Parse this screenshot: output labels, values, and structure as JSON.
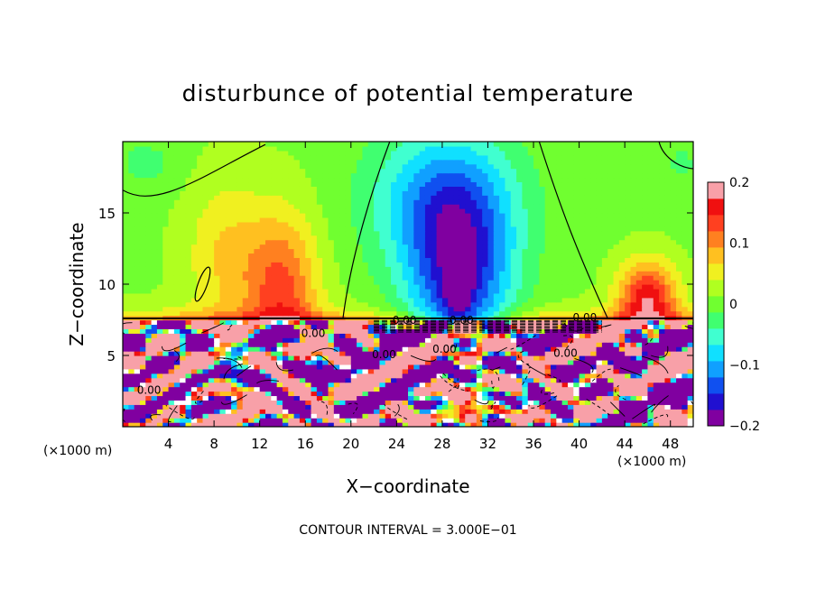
{
  "chart_data": {
    "type": "heatmap",
    "title": "disturbunce of potential temperature",
    "xlabel": "X−coordinate",
    "ylabel": "Z−coordinate",
    "x_unit_left": "(×1000 m)",
    "x_unit_right": "(×1000 m)",
    "footer": "CONTOUR INTERVAL = 3.000E−01",
    "x_range": [
      0,
      50
    ],
    "y_range": [
      0,
      20
    ],
    "x_ticks": [
      4,
      8,
      12,
      16,
      20,
      24,
      28,
      32,
      36,
      40,
      44,
      48
    ],
    "y_ticks": [
      5,
      10,
      15
    ],
    "colorbar": {
      "range": [
        -0.2,
        0.2
      ],
      "tick_values": [
        0.2,
        0.1,
        0,
        -0.1,
        -0.2
      ],
      "tick_labels": [
        "0.2",
        "0.1",
        "0",
        "−0.1",
        "−0.2"
      ],
      "colors": [
        "#8000a0",
        "#2010d0",
        "#1050f0",
        "#10a0ff",
        "#10e0ff",
        "#40ffd0",
        "#40ff70",
        "#70ff30",
        "#b0ff20",
        "#f0f020",
        "#ffc020",
        "#ff8020",
        "#ff4020",
        "#f01010",
        "#f8a0a8"
      ]
    },
    "contour_labels": [
      {
        "text": "0.00",
        "x": 24.7,
        "y": 7.2
      },
      {
        "text": "0.00",
        "x": 29.7,
        "y": 7.2
      },
      {
        "text": "0.00",
        "x": 40.5,
        "y": 7.4
      },
      {
        "text": "0.00",
        "x": 16.7,
        "y": 6.3
      },
      {
        "text": "0.00",
        "x": 38.8,
        "y": 4.9
      },
      {
        "text": "0.00",
        "x": 28.2,
        "y": 5.2
      },
      {
        "text": "0.00",
        "x": 22.9,
        "y": 4.8
      },
      {
        "text": "0.00",
        "x": 2.3,
        "y": 2.3
      }
    ],
    "features": [
      {
        "kind": "warm",
        "center": [
          14,
          11
        ],
        "amplitude": 0.13
      },
      {
        "kind": "warm",
        "center": [
          46,
          9.5
        ],
        "amplitude": 0.15
      },
      {
        "kind": "warm",
        "center": [
          8.5,
          9
        ],
        "amplitude": 0.06
      },
      {
        "kind": "cold",
        "center": [
          29.5,
          11
        ],
        "amplitude": -0.2
      },
      {
        "kind": "cold",
        "center": [
          28,
          16
        ],
        "amplitude": -0.08
      }
    ],
    "interface_height": 7.6,
    "grid": false
  }
}
